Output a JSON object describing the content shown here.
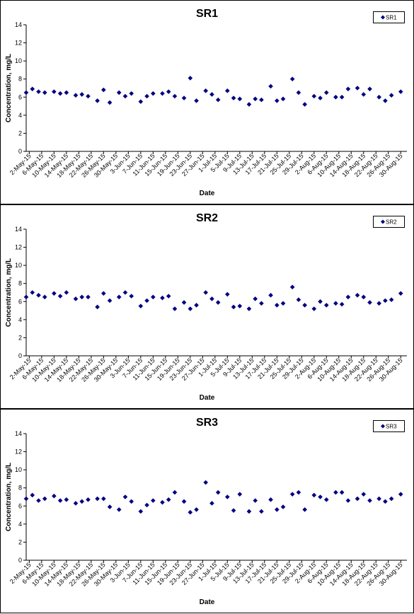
{
  "colors": {
    "marker": "#000080",
    "frame": "#000000",
    "axis": "#000000"
  },
  "chart_data": [
    {
      "type": "scatter",
      "title": "SR1",
      "xlabel": "Date",
      "ylabel": "Concentration, mg/L",
      "ylim": [
        0,
        14
      ],
      "yticks": [
        0,
        2,
        4,
        6,
        8,
        10,
        12,
        14
      ],
      "xlim": [
        "2015-05-01",
        "2015-09-01"
      ],
      "xticks": [
        "2-May-15",
        "6-May-15",
        "10-May-15",
        "14-May-15",
        "18-May-15",
        "22-May-15",
        "26-May-15",
        "30-May-15",
        "3-Jun-15",
        "7-Jun-15",
        "11-Jun-15",
        "15-Jun-15",
        "19-Jun-15",
        "23-Jun-15",
        "27-Jun-15",
        "1-Jul-15",
        "5-Jul-15",
        "9-Jul-15",
        "13-Jul-15",
        "17-Jul-15",
        "21-Jul-15",
        "25-Jul-15",
        "29-Jul-15",
        "2-Aug-15",
        "6-Aug-15",
        "10-Aug-15",
        "14-Aug-15",
        "18-Aug-15",
        "22-Aug-15",
        "26-Aug-15",
        "30-Aug-15"
      ],
      "grid": false,
      "legend_position": "top-right",
      "series": [
        {
          "name": "SR1",
          "x": [
            "2015-05-01",
            "2015-05-03",
            "2015-05-05",
            "2015-05-07",
            "2015-05-10",
            "2015-05-12",
            "2015-05-14",
            "2015-05-17",
            "2015-05-19",
            "2015-05-21",
            "2015-05-24",
            "2015-05-26",
            "2015-05-28",
            "2015-05-31",
            "2015-06-02",
            "2015-06-04",
            "2015-06-07",
            "2015-06-09",
            "2015-06-11",
            "2015-06-14",
            "2015-06-16",
            "2015-06-18",
            "2015-06-21",
            "2015-06-23",
            "2015-06-25",
            "2015-06-28",
            "2015-06-30",
            "2015-07-02",
            "2015-07-05",
            "2015-07-07",
            "2015-07-09",
            "2015-07-12",
            "2015-07-14",
            "2015-07-16",
            "2015-07-19",
            "2015-07-21",
            "2015-07-23",
            "2015-07-26",
            "2015-07-28",
            "2015-07-30",
            "2015-08-02",
            "2015-08-04",
            "2015-08-06",
            "2015-08-09",
            "2015-08-11",
            "2015-08-13",
            "2015-08-16",
            "2015-08-18",
            "2015-08-20",
            "2015-08-23",
            "2015-08-25",
            "2015-08-27",
            "2015-08-30"
          ],
          "values": [
            6.5,
            6.9,
            6.6,
            6.5,
            6.6,
            6.4,
            6.5,
            6.2,
            6.3,
            6.1,
            5.6,
            6.8,
            5.4,
            6.5,
            6.1,
            6.4,
            5.5,
            6.1,
            6.4,
            6.4,
            6.6,
            6.1,
            5.9,
            8.1,
            5.6,
            6.7,
            6.3,
            5.7,
            6.7,
            5.9,
            5.8,
            5.2,
            5.8,
            5.7,
            7.2,
            5.6,
            5.8,
            8.0,
            6.5,
            5.2,
            6.1,
            5.9,
            6.5,
            6.0,
            6.0,
            6.9,
            7.0,
            6.3,
            6.9,
            6.0,
            5.6,
            6.2,
            6.6
          ]
        }
      ]
    },
    {
      "type": "scatter",
      "title": "SR2",
      "xlabel": "Date",
      "ylabel": "Concentration, mg/L",
      "ylim": [
        0,
        14
      ],
      "yticks": [
        0,
        2,
        4,
        6,
        8,
        10,
        12,
        14
      ],
      "xlim": [
        "2015-05-01",
        "2015-09-01"
      ],
      "xticks": [
        "2-May-15",
        "6-May-15",
        "10-May-15",
        "14-May-15",
        "18-May-15",
        "22-May-15",
        "26-May-15",
        "30-May-15",
        "3-Jun-15",
        "7-Jun-15",
        "11-Jun-15",
        "15-Jun-15",
        "19-Jun-15",
        "23-Jun-15",
        "27-Jun-15",
        "1-Jul-15",
        "5-Jul-15",
        "9-Jul-15",
        "13-Jul-15",
        "17-Jul-15",
        "21-Jul-15",
        "25-Jul-15",
        "29-Jul-15",
        "2-Aug-15",
        "6-Aug-15",
        "10-Aug-15",
        "14-Aug-15",
        "18-Aug-15",
        "22-Aug-15",
        "26-Aug-15",
        "30-Aug-15"
      ],
      "grid": false,
      "legend_position": "top-right",
      "series": [
        {
          "name": "SR2",
          "x": [
            "2015-05-01",
            "2015-05-03",
            "2015-05-05",
            "2015-05-07",
            "2015-05-10",
            "2015-05-12",
            "2015-05-14",
            "2015-05-17",
            "2015-05-19",
            "2015-05-21",
            "2015-05-24",
            "2015-05-26",
            "2015-05-28",
            "2015-05-31",
            "2015-06-02",
            "2015-06-04",
            "2015-06-07",
            "2015-06-09",
            "2015-06-11",
            "2015-06-14",
            "2015-06-16",
            "2015-06-18",
            "2015-06-21",
            "2015-06-23",
            "2015-06-25",
            "2015-06-28",
            "2015-06-30",
            "2015-07-02",
            "2015-07-05",
            "2015-07-07",
            "2015-07-09",
            "2015-07-12",
            "2015-07-14",
            "2015-07-16",
            "2015-07-19",
            "2015-07-21",
            "2015-07-23",
            "2015-07-26",
            "2015-07-28",
            "2015-07-30",
            "2015-08-02",
            "2015-08-04",
            "2015-08-06",
            "2015-08-09",
            "2015-08-11",
            "2015-08-13",
            "2015-08-16",
            "2015-08-18",
            "2015-08-20",
            "2015-08-23",
            "2015-08-25",
            "2015-08-27",
            "2015-08-30"
          ],
          "values": [
            6.5,
            7.0,
            6.7,
            6.5,
            6.9,
            6.6,
            7.0,
            6.3,
            6.5,
            6.5,
            5.4,
            6.9,
            6.1,
            6.5,
            7.0,
            6.6,
            5.5,
            6.1,
            6.5,
            6.4,
            6.6,
            5.2,
            5.9,
            5.2,
            5.6,
            7.0,
            6.3,
            5.9,
            6.8,
            5.4,
            5.5,
            5.2,
            6.3,
            5.8,
            6.7,
            5.6,
            5.8,
            7.6,
            6.2,
            5.6,
            5.2,
            6.0,
            5.6,
            5.8,
            5.7,
            6.5,
            6.7,
            6.5,
            5.9,
            5.8,
            6.1,
            6.2,
            6.9
          ]
        }
      ]
    },
    {
      "type": "scatter",
      "title": "SR3",
      "xlabel": "Date",
      "ylabel": "Concentration, mg/L",
      "ylim": [
        0,
        14
      ],
      "yticks": [
        0,
        2,
        4,
        6,
        8,
        10,
        12,
        14
      ],
      "xlim": [
        "2015-05-01",
        "2015-09-01"
      ],
      "xticks": [
        "2-May-15",
        "6-May-15",
        "10-May-15",
        "14-May-15",
        "18-May-15",
        "22-May-15",
        "26-May-15",
        "30-May-15",
        "3-Jun-15",
        "7-Jun-15",
        "11-Jun-15",
        "15-Jun-15",
        "19-Jun-15",
        "23-Jun-15",
        "27-Jun-15",
        "1-Jul-15",
        "5-Jul-15",
        "9-Jul-15",
        "13-Jul-15",
        "17-Jul-15",
        "21-Jul-15",
        "25-Jul-15",
        "29-Jul-15",
        "2-Aug-15",
        "6-Aug-15",
        "10-Aug-15",
        "14-Aug-15",
        "18-Aug-15",
        "22-Aug-15",
        "26-Aug-15",
        "30-Aug-15"
      ],
      "grid": false,
      "legend_position": "top-right",
      "series": [
        {
          "name": "SR3",
          "x": [
            "2015-05-01",
            "2015-05-03",
            "2015-05-05",
            "2015-05-07",
            "2015-05-10",
            "2015-05-12",
            "2015-05-14",
            "2015-05-17",
            "2015-05-19",
            "2015-05-21",
            "2015-05-24",
            "2015-05-26",
            "2015-05-28",
            "2015-05-31",
            "2015-06-02",
            "2015-06-04",
            "2015-06-07",
            "2015-06-09",
            "2015-06-11",
            "2015-06-14",
            "2015-06-16",
            "2015-06-18",
            "2015-06-21",
            "2015-06-23",
            "2015-06-25",
            "2015-06-28",
            "2015-06-30",
            "2015-07-02",
            "2015-07-05",
            "2015-07-07",
            "2015-07-09",
            "2015-07-12",
            "2015-07-14",
            "2015-07-16",
            "2015-07-19",
            "2015-07-21",
            "2015-07-23",
            "2015-07-26",
            "2015-07-28",
            "2015-07-30",
            "2015-08-02",
            "2015-08-04",
            "2015-08-06",
            "2015-08-09",
            "2015-08-11",
            "2015-08-13",
            "2015-08-16",
            "2015-08-18",
            "2015-08-20",
            "2015-08-23",
            "2015-08-25",
            "2015-08-27",
            "2015-08-30"
          ],
          "values": [
            6.8,
            7.2,
            6.6,
            6.8,
            7.1,
            6.6,
            6.7,
            6.3,
            6.5,
            6.7,
            6.8,
            6.8,
            5.9,
            5.6,
            7.0,
            6.5,
            5.4,
            6.1,
            6.6,
            6.4,
            6.7,
            7.5,
            6.5,
            5.3,
            5.6,
            8.6,
            6.3,
            7.5,
            7.0,
            5.5,
            7.3,
            5.4,
            6.6,
            5.4,
            6.7,
            5.6,
            5.9,
            7.3,
            7.5,
            5.6,
            7.2,
            7.0,
            6.7,
            7.5,
            7.5,
            6.6,
            6.8,
            7.3,
            6.6,
            6.8,
            6.5,
            6.8,
            7.3
          ]
        }
      ]
    }
  ]
}
